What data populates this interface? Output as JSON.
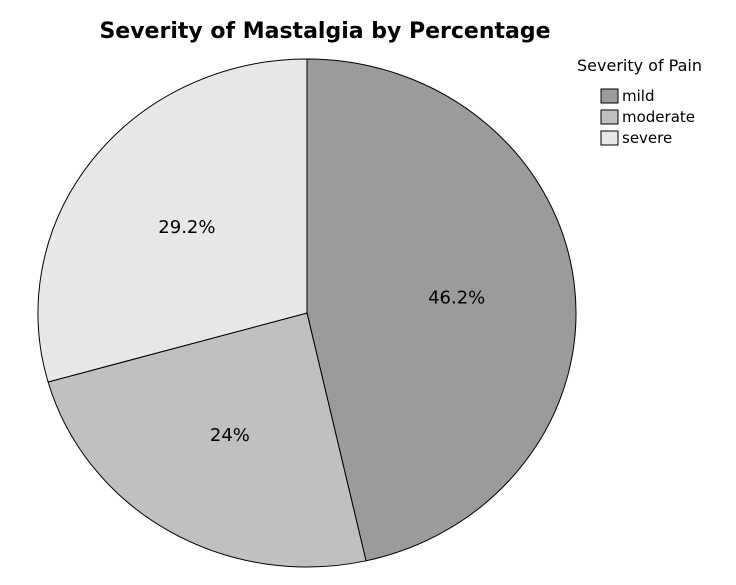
{
  "chart_data": {
    "type": "pie",
    "title": "Severity of Mastalgia by Percentage",
    "legend_title": "Severity of Pain",
    "legend_position": "top-right",
    "categories": [
      "mild",
      "moderate",
      "severe"
    ],
    "values": [
      46.2,
      24,
      29.2
    ],
    "labels": [
      "46.2%",
      "24%",
      "29.2%"
    ],
    "colors": [
      "#9b9b9b",
      "#c0c0c0",
      "#e8e8e8"
    ],
    "start_angle": "12 o'clock",
    "direction": "clockwise"
  }
}
